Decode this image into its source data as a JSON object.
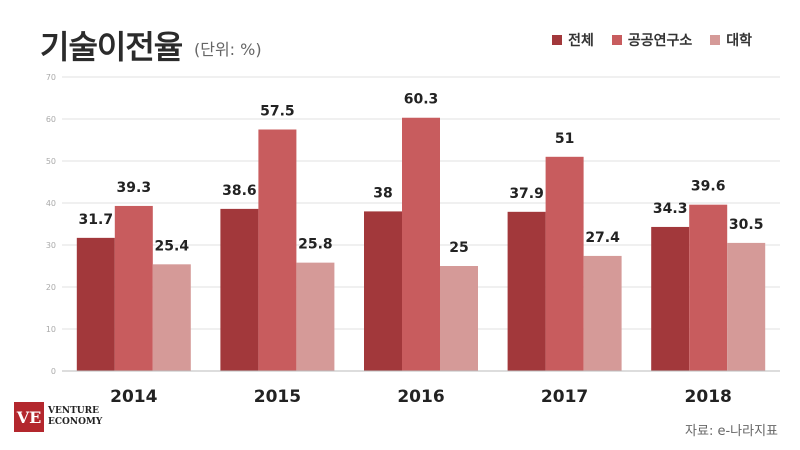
{
  "title": "기술이전율",
  "subtitle": "(단위: %)",
  "source": "자료: e-나라지표",
  "logo": {
    "line1": "VENTURE",
    "line2": "ECONOMY",
    "mark": "VE"
  },
  "colors": {
    "전체": "#a2383b",
    "공공연구소": "#c85c5e",
    "대학": "#d59a98"
  },
  "chart_data": {
    "type": "bar",
    "title": "기술이전율",
    "categories": [
      "2014",
      "2015",
      "2016",
      "2017",
      "2018"
    ],
    "series": [
      {
        "name": "전체",
        "values": [
          31.7,
          38.6,
          38,
          37.9,
          34.3
        ]
      },
      {
        "name": "공공연구소",
        "values": [
          39.3,
          57.5,
          60.3,
          51,
          39.6
        ]
      },
      {
        "name": "대학",
        "values": [
          25.4,
          25.8,
          25,
          27.4,
          30.5
        ]
      }
    ],
    "ylim": [
      0,
      70
    ],
    "yticks": [
      "0",
      "10",
      "20",
      "30",
      "40",
      "50",
      "60",
      "70"
    ],
    "grid": true,
    "legend_position": "top-right"
  }
}
